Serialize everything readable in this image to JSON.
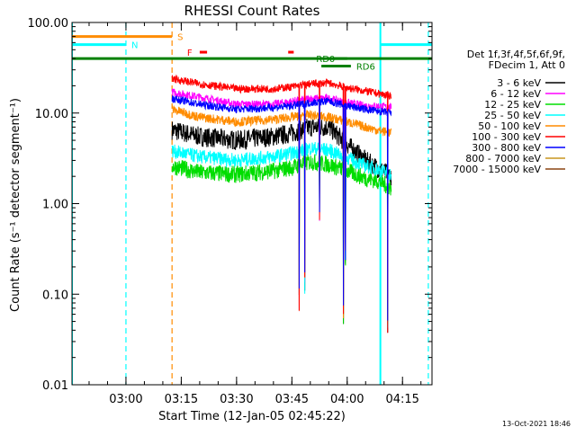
{
  "chart_data": {
    "type": "line",
    "title": "RHESSI Count Rates",
    "xlabel": "Start Time (12-Jan-05 02:45:22)",
    "ylabel": "Count Rate (s⁻¹ detector segment⁻¹)",
    "yscale": "log",
    "ylim": [
      0.01,
      100
    ],
    "xlim": [
      "02:45:22",
      "04:23:00"
    ],
    "x_ticks": [
      "03:00",
      "03:15",
      "03:30",
      "03:45",
      "04:00",
      "04:15"
    ],
    "y_ticks": [
      "0.01",
      "0.10",
      "1.00",
      "10.00",
      "100.00"
    ],
    "legend_header": [
      "Det 1f,3f,4f,5f,6f,9f,",
      "FDecim 1, Att 0"
    ],
    "legend_position": "right",
    "footer": "13-Oct-2021 18:46",
    "data_start": "03:12:30",
    "data_end": "04:12:00",
    "series": [
      {
        "name": "3 - 6 keV",
        "color": "#000000",
        "points": [
          [
            "03:12:30",
            6.5
          ],
          [
            "03:20",
            5.5
          ],
          [
            "03:30",
            5.0
          ],
          [
            "03:40",
            5.5
          ],
          [
            "03:45",
            6.0
          ],
          [
            "03:50",
            7.0
          ],
          [
            "03:55",
            7.0
          ],
          [
            "04:00",
            4.5
          ],
          [
            "04:05",
            3.0
          ],
          [
            "04:08",
            2.5
          ],
          [
            "04:12",
            2.0
          ]
        ]
      },
      {
        "name": "6 - 12 keV",
        "color": "#ff00ff",
        "points": [
          [
            "03:12:30",
            17.0
          ],
          [
            "03:20",
            15.0
          ],
          [
            "03:30",
            12.5
          ],
          [
            "03:40",
            12.5
          ],
          [
            "03:45",
            13.5
          ],
          [
            "03:50",
            14.5
          ],
          [
            "03:55",
            14.5
          ],
          [
            "04:00",
            13.0
          ],
          [
            "04:05",
            12.0
          ],
          [
            "04:08",
            12.0
          ],
          [
            "04:12",
            11.5
          ]
        ]
      },
      {
        "name": "12 - 25 keV",
        "color": "#00dd00",
        "points": [
          [
            "03:12:30",
            2.6
          ],
          [
            "03:20",
            2.2
          ],
          [
            "03:30",
            2.1
          ],
          [
            "03:40",
            2.3
          ],
          [
            "03:45",
            2.5
          ],
          [
            "03:50",
            2.9
          ],
          [
            "03:55",
            2.7
          ],
          [
            "04:00",
            2.3
          ],
          [
            "04:05",
            1.9
          ],
          [
            "04:08",
            1.8
          ],
          [
            "04:12",
            1.5
          ]
        ]
      },
      {
        "name": "25 - 50 keV",
        "color": "#00ffff",
        "points": [
          [
            "03:12:30",
            3.8
          ],
          [
            "03:20",
            3.3
          ],
          [
            "03:30",
            3.0
          ],
          [
            "03:40",
            3.3
          ],
          [
            "03:45",
            3.6
          ],
          [
            "03:50",
            4.1
          ],
          [
            "03:55",
            3.9
          ],
          [
            "04:00",
            3.2
          ],
          [
            "04:05",
            2.6
          ],
          [
            "04:08",
            2.4
          ],
          [
            "04:12",
            2.1
          ]
        ]
      },
      {
        "name": "50 - 100 keV",
        "color": "#ff8c00",
        "points": [
          [
            "03:12:30",
            11.0
          ],
          [
            "03:20",
            9.0
          ],
          [
            "03:30",
            8.0
          ],
          [
            "03:40",
            8.5
          ],
          [
            "03:45",
            9.0
          ],
          [
            "03:50",
            9.5
          ],
          [
            "03:55",
            9.0
          ],
          [
            "04:00",
            8.0
          ],
          [
            "04:05",
            7.0
          ],
          [
            "04:08",
            6.5
          ],
          [
            "04:12",
            6.0
          ]
        ]
      },
      {
        "name": "100 - 300 keV",
        "color": "#ff0000",
        "points": [
          [
            "03:12:30",
            24.0
          ],
          [
            "03:20",
            21.0
          ],
          [
            "03:30",
            18.5
          ],
          [
            "03:40",
            18.5
          ],
          [
            "03:45",
            19.5
          ],
          [
            "03:50",
            21.0
          ],
          [
            "03:55",
            21.5
          ],
          [
            "04:00",
            19.0
          ],
          [
            "04:05",
            17.5
          ],
          [
            "04:08",
            16.5
          ],
          [
            "04:12",
            15.5
          ]
        ]
      },
      {
        "name": "300 - 800 keV",
        "color": "#0000ff",
        "points": [
          [
            "03:12:30",
            14.5
          ],
          [
            "03:20",
            12.5
          ],
          [
            "03:30",
            11.0
          ],
          [
            "03:40",
            11.5
          ],
          [
            "03:45",
            12.0
          ],
          [
            "03:50",
            13.0
          ],
          [
            "03:55",
            13.5
          ],
          [
            "04:00",
            12.0
          ],
          [
            "04:05",
            11.0
          ],
          [
            "04:08",
            10.5
          ],
          [
            "04:12",
            10.0
          ]
        ]
      },
      {
        "name": "800 - 7000 keV",
        "color": "#c8961e",
        "points": []
      },
      {
        "name": "7000 - 15000 keV",
        "color": "#8b4513",
        "points": []
      }
    ],
    "dropouts": [
      {
        "time": "03:47:00",
        "min": 0.06
      },
      {
        "time": "03:48:30",
        "min": 0.1
      },
      {
        "time": "03:52:30",
        "min": 0.6
      },
      {
        "time": "03:59:00",
        "min": 0.045
      },
      {
        "time": "03:59:30",
        "min": 0.2
      },
      {
        "time": "04:11:00",
        "min": 0.035
      }
    ],
    "markers": [
      {
        "label": "S",
        "color": "#ff8c00",
        "y": 70,
        "from": "02:45:22",
        "to": "03:12:30"
      },
      {
        "label": "N",
        "color": "#00ffff",
        "y": 57,
        "from": "02:45:22",
        "to": "03:00:00"
      },
      {
        "label": "",
        "color": "#00ffff",
        "y": 57,
        "from": "04:09:00",
        "to": "04:23:00"
      },
      {
        "label": "F",
        "color": "#ff0000",
        "y": 47,
        "from": "03:20:00",
        "to": "03:22:00"
      },
      {
        "label": "",
        "color": "#ff0000",
        "y": 47,
        "from": "03:44:00",
        "to": "03:45:30"
      },
      {
        "label": "",
        "color": "#008000",
        "y": 40,
        "from": "02:45:22",
        "to": "04:23:00"
      },
      {
        "label": "RD0",
        "color": "#008000",
        "y": 40,
        "from": "03:55:00",
        "to": "04:00:00"
      },
      {
        "label": "RD6",
        "color": "#008000",
        "y": 33,
        "from": "03:53:00",
        "to": "04:01:00"
      }
    ],
    "vertical_lines": [
      {
        "time": "02:45:22",
        "color": "#00ffff",
        "style": "solid"
      },
      {
        "time": "03:00:00",
        "color": "#00ffff",
        "style": "dashed"
      },
      {
        "time": "03:12:30",
        "color": "#ff8c00",
        "style": "dashed"
      },
      {
        "time": "04:09:00",
        "color": "#00ffff",
        "style": "solid"
      },
      {
        "time": "04:22:00",
        "color": "#00ffff",
        "style": "dashed"
      }
    ]
  }
}
